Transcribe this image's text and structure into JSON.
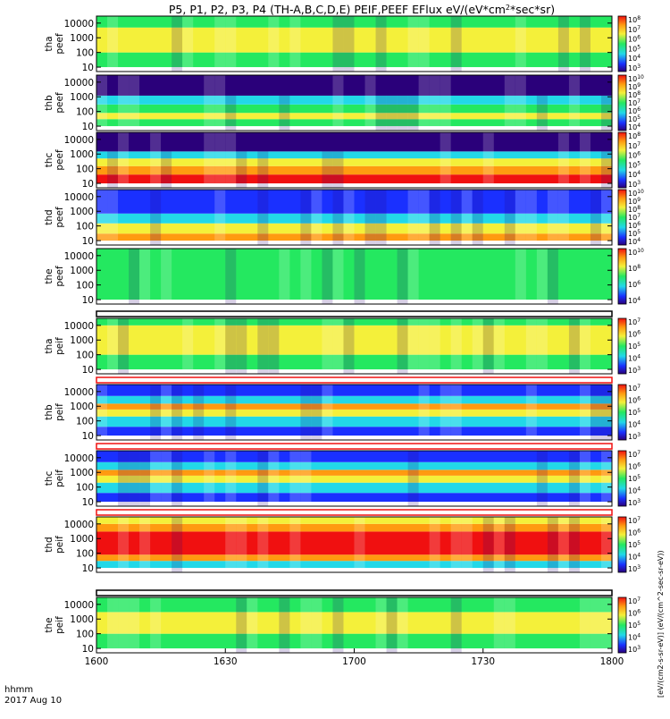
{
  "title": "P5, P1, P2, P3, P4 (TH-A,B,C,D,E) PEIF,PEEF EFlux eV/(eV*cm2*sec*sr)",
  "title_parts": {
    "main": "P5, P1, P2, P3, P4 (TH-A,B,C,D,E) PEIF,PEEF EFlux eV/(eV*cm",
    "sup": "2",
    "tail": "*sec*sr)"
  },
  "x_axis": {
    "range": [
      "16:00",
      "18:00"
    ],
    "tick_labels": [
      "1600",
      "1630",
      "1700",
      "1730",
      "1800"
    ],
    "footer_label": "hhmm",
    "date_label": "2017 Aug 10"
  },
  "colorbar_unit_label": "[eV/(cm2-s-sr-eV)] (eV/(cm^2-sec-sr-eV))",
  "palette": {
    "dark_blue": "#2a007a",
    "blue": "#1a30ff",
    "cyan": "#22d8e8",
    "green": "#24e860",
    "yellow": "#f4f03a",
    "orange": "#ff9a10",
    "red": "#f01010",
    "black": "#000000"
  },
  "chart_data": [
    {
      "type": "heatmap",
      "panel": "tha peef",
      "ylabel": [
        "tha",
        "peef"
      ],
      "y_scale": "log",
      "y_ticks": [
        "10000",
        "1000",
        "100",
        "10"
      ],
      "colorbar_ticks": [
        "10^8",
        "10^7",
        "10^6",
        "10^5",
        "10^4",
        "10^3"
      ],
      "dominant_colors": [
        "green",
        "yellow"
      ],
      "bands": [
        {
          "energy_eV": [
            10,
            100
          ],
          "color": "green"
        },
        {
          "energy_eV": [
            100,
            5000
          ],
          "color": "yellow"
        },
        {
          "energy_eV": [
            5000,
            30000
          ],
          "color": "green"
        }
      ]
    },
    {
      "type": "heatmap",
      "panel": "thb peef",
      "ylabel": [
        "thb",
        "peef"
      ],
      "y_scale": "log",
      "y_ticks": [
        "10000",
        "1000",
        "100",
        "10"
      ],
      "colorbar_ticks": [
        "10^10",
        "10^9",
        "10^8",
        "10^7",
        "10^6",
        "10^5",
        "10^4"
      ],
      "dominant_colors": [
        "dark_blue",
        "cyan",
        "yellow"
      ],
      "bands": [
        {
          "energy_eV": [
            10,
            30
          ],
          "color": "green"
        },
        {
          "energy_eV": [
            30,
            80
          ],
          "color": "yellow"
        },
        {
          "energy_eV": [
            80,
            300
          ],
          "color": "green"
        },
        {
          "energy_eV": [
            300,
            1200
          ],
          "color": "cyan"
        },
        {
          "energy_eV": [
            1200,
            30000
          ],
          "color": "dark_blue"
        }
      ]
    },
    {
      "type": "heatmap",
      "panel": "thc peef",
      "ylabel": [
        "thc",
        "peef"
      ],
      "y_scale": "log",
      "y_ticks": [
        "10000",
        "1000",
        "100",
        "10"
      ],
      "colorbar_ticks": [
        "10^8",
        "10^7",
        "10^6",
        "10^5",
        "10^4",
        "10^3"
      ],
      "dominant_colors": [
        "red",
        "orange",
        "yellow",
        "dark_blue"
      ],
      "bands": [
        {
          "energy_eV": [
            10,
            40
          ],
          "color": "red"
        },
        {
          "energy_eV": [
            40,
            150
          ],
          "color": "orange"
        },
        {
          "energy_eV": [
            150,
            500
          ],
          "color": "yellow"
        },
        {
          "energy_eV": [
            500,
            1500
          ],
          "color": "cyan"
        },
        {
          "energy_eV": [
            1500,
            30000
          ],
          "color": "dark_blue"
        }
      ]
    },
    {
      "type": "heatmap",
      "panel": "thd peef",
      "ylabel": [
        "thd",
        "peef"
      ],
      "y_scale": "log",
      "y_ticks": [
        "10000",
        "1000",
        "100",
        "10"
      ],
      "colorbar_ticks": [
        "10^10",
        "10^9",
        "10^8",
        "10^7",
        "10^6",
        "10^5",
        "10^4"
      ],
      "dominant_colors": [
        "orange",
        "yellow",
        "cyan",
        "blue"
      ],
      "bands": [
        {
          "energy_eV": [
            10,
            30
          ],
          "color": "orange"
        },
        {
          "energy_eV": [
            30,
            150
          ],
          "color": "yellow"
        },
        {
          "energy_eV": [
            150,
            700
          ],
          "color": "cyan"
        },
        {
          "energy_eV": [
            700,
            30000
          ],
          "color": "blue"
        }
      ]
    },
    {
      "type": "heatmap",
      "panel": "the peef",
      "ylabel": [
        "the",
        "peef"
      ],
      "y_scale": "log",
      "y_ticks": [
        "10000",
        "1000",
        "100",
        "10"
      ],
      "colorbar_ticks": [
        "10^10",
        "10^8",
        "10^6",
        "10^4"
      ],
      "dominant_colors": [
        "green",
        "cyan"
      ],
      "bands": [
        {
          "energy_eV": [
            10,
            30000
          ],
          "color": "green"
        }
      ]
    },
    {
      "type": "heatmap",
      "panel": "tha peif",
      "ylabel": [
        "tha",
        "peif"
      ],
      "y_scale": "log",
      "y_ticks": [
        "10000",
        "1000",
        "100",
        "10"
      ],
      "colorbar_ticks": [
        "10^7",
        "10^6",
        "10^5",
        "10^4",
        "10^3"
      ],
      "dominant_colors": [
        "yellow",
        "green"
      ],
      "bands": [
        {
          "energy_eV": [
            10,
            100
          ],
          "color": "green"
        },
        {
          "energy_eV": [
            100,
            10000
          ],
          "color": "yellow"
        },
        {
          "energy_eV": [
            10000,
            30000
          ],
          "color": "green"
        }
      ]
    },
    {
      "type": "heatmap",
      "panel": "thb peif",
      "ylabel": [
        "thb",
        "peif"
      ],
      "y_scale": "log",
      "y_ticks": [
        "10000",
        "1000",
        "100",
        "10"
      ],
      "colorbar_ticks": [
        "10^7",
        "10^6",
        "10^5",
        "10^4",
        "10^3"
      ],
      "dominant_colors": [
        "orange",
        "cyan",
        "blue"
      ],
      "bands": [
        {
          "energy_eV": [
            10,
            40
          ],
          "color": "blue"
        },
        {
          "energy_eV": [
            40,
            200
          ],
          "color": "cyan"
        },
        {
          "energy_eV": [
            200,
            600
          ],
          "color": "yellow"
        },
        {
          "energy_eV": [
            600,
            1500
          ],
          "color": "orange"
        },
        {
          "energy_eV": [
            1500,
            5000
          ],
          "color": "cyan"
        },
        {
          "energy_eV": [
            5000,
            30000
          ],
          "color": "blue"
        }
      ]
    },
    {
      "type": "heatmap",
      "panel": "thc peif",
      "ylabel": [
        "thc",
        "peif"
      ],
      "y_scale": "log",
      "y_ticks": [
        "10000",
        "1000",
        "100",
        "10"
      ],
      "colorbar_ticks": [
        "10^7",
        "10^6",
        "10^5",
        "10^4",
        "10^3"
      ],
      "dominant_colors": [
        "orange",
        "cyan",
        "blue"
      ],
      "bands": [
        {
          "energy_eV": [
            10,
            40
          ],
          "color": "blue"
        },
        {
          "energy_eV": [
            40,
            200
          ],
          "color": "cyan"
        },
        {
          "energy_eV": [
            200,
            600
          ],
          "color": "yellow"
        },
        {
          "energy_eV": [
            600,
            1500
          ],
          "color": "orange"
        },
        {
          "energy_eV": [
            1500,
            5000
          ],
          "color": "cyan"
        },
        {
          "energy_eV": [
            5000,
            30000
          ],
          "color": "blue"
        }
      ]
    },
    {
      "type": "heatmap",
      "panel": "thd peif",
      "ylabel": [
        "thd",
        "peif"
      ],
      "y_scale": "log",
      "y_ticks": [
        "10000",
        "1000",
        "100",
        "10"
      ],
      "colorbar_ticks": [
        "10^7",
        "10^6",
        "10^5",
        "10^4",
        "10^3"
      ],
      "dominant_colors": [
        "red",
        "orange",
        "cyan"
      ],
      "bands": [
        {
          "energy_eV": [
            10,
            30
          ],
          "color": "cyan"
        },
        {
          "energy_eV": [
            30,
            80
          ],
          "color": "orange"
        },
        {
          "energy_eV": [
            80,
            3000
          ],
          "color": "red"
        },
        {
          "energy_eV": [
            3000,
            10000
          ],
          "color": "orange"
        },
        {
          "energy_eV": [
            10000,
            30000
          ],
          "color": "yellow"
        }
      ]
    },
    {
      "type": "heatmap",
      "panel": "the peif",
      "ylabel": [
        "the",
        "peif"
      ],
      "y_scale": "log",
      "y_ticks": [
        "10000",
        "1000",
        "100",
        "10"
      ],
      "colorbar_ticks": [
        "10^7",
        "10^6",
        "10^5",
        "10^4",
        "10^3"
      ],
      "dominant_colors": [
        "green",
        "yellow"
      ],
      "bands": [
        {
          "energy_eV": [
            10,
            100
          ],
          "color": "green"
        },
        {
          "energy_eV": [
            100,
            3000
          ],
          "color": "yellow"
        },
        {
          "energy_eV": [
            3000,
            30000
          ],
          "color": "green"
        }
      ]
    }
  ]
}
